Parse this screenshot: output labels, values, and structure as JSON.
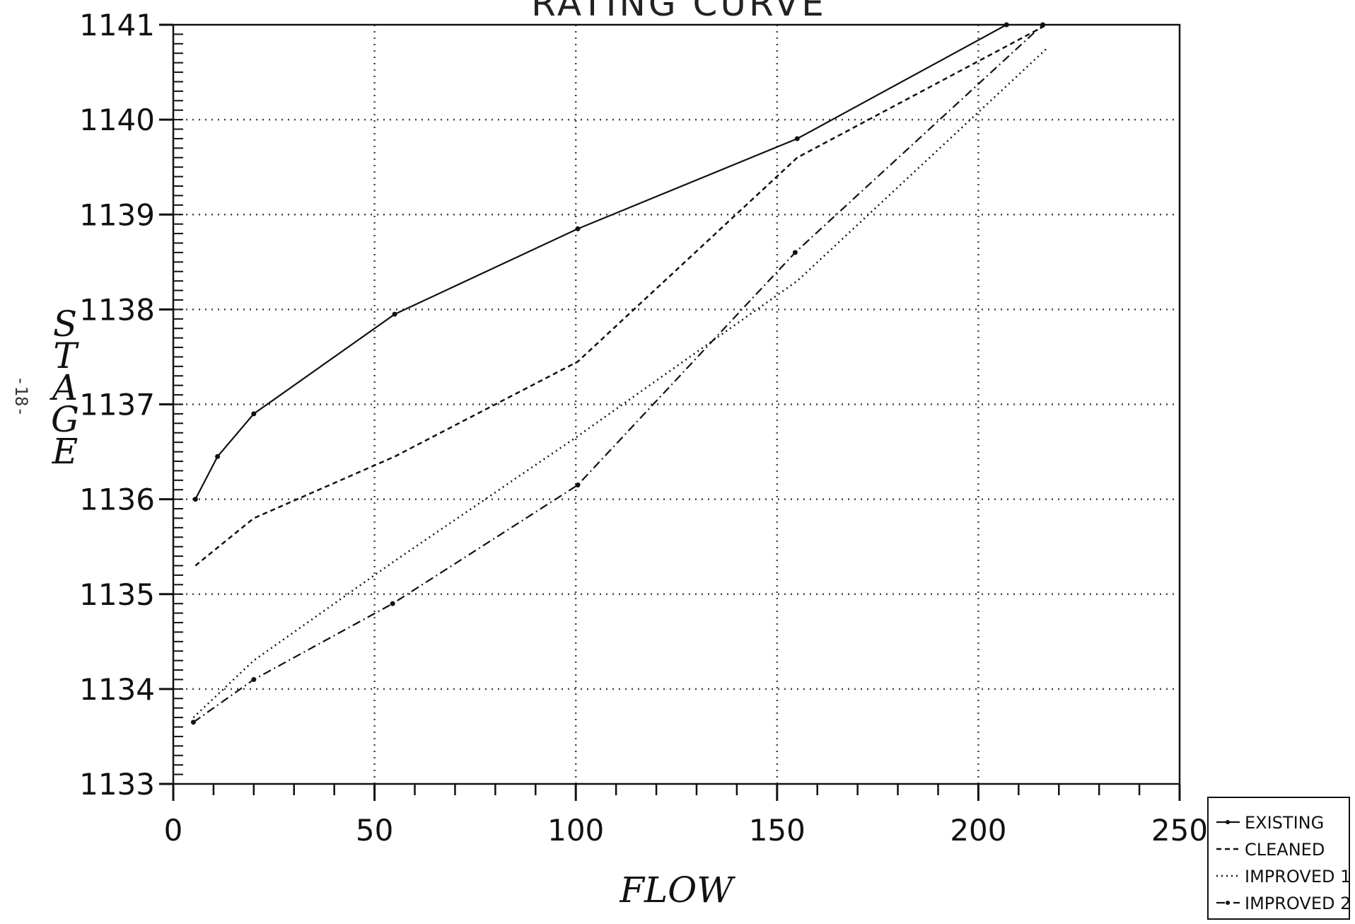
{
  "page_number": "-18-",
  "chart_data": {
    "type": "line",
    "title": "RATING CURVE",
    "xlabel": "FLOW",
    "ylabel": "STAGE",
    "xlim": [
      0,
      250
    ],
    "ylim": [
      1133,
      1141
    ],
    "xticks": [
      0,
      50,
      100,
      150,
      200,
      250
    ],
    "yticks": [
      1133,
      1134,
      1135,
      1136,
      1137,
      1138,
      1139,
      1140,
      1141
    ],
    "grid": true,
    "legend_position": "bottom-right outside",
    "series": [
      {
        "name": "EXISTING",
        "style": "solid",
        "marker": true,
        "x": [
          5.5,
          11,
          20,
          55,
          100.5,
          155,
          207
        ],
        "y": [
          1136.0,
          1136.45,
          1136.9,
          1137.95,
          1138.85,
          1139.8,
          1141.0
        ]
      },
      {
        "name": "CLEANED",
        "style": "dashed",
        "marker": false,
        "x": [
          5.5,
          20,
          55,
          100.5,
          155,
          217
        ],
        "y": [
          1135.3,
          1135.8,
          1136.45,
          1137.45,
          1139.6,
          1141.0
        ]
      },
      {
        "name": "IMPROVED 1",
        "style": "dotted",
        "marker": false,
        "x": [
          5,
          20,
          55,
          100,
          155,
          217
        ],
        "y": [
          1133.7,
          1134.3,
          1135.35,
          1136.65,
          1138.3,
          1140.75
        ]
      },
      {
        "name": "IMPROVED 2",
        "style": "dashdot",
        "marker": true,
        "x": [
          5,
          20,
          54.5,
          100.5,
          154.5,
          216
        ],
        "y": [
          1133.65,
          1134.1,
          1134.9,
          1136.15,
          1138.6,
          1141.0
        ]
      }
    ]
  }
}
